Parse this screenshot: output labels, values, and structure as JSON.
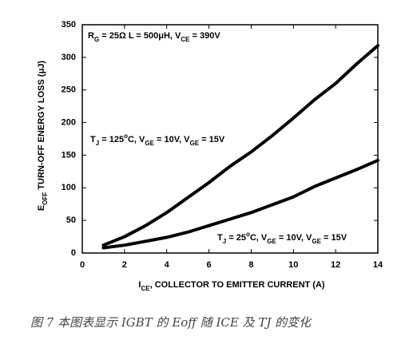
{
  "chart_data": {
    "type": "line",
    "annotations": [
      [
        {
          "text": "R"
        },
        {
          "text": "G",
          "sub": true
        },
        {
          "text": " = 25Ω L = 500μH, V"
        },
        {
          "text": "CE",
          "sub": true
        },
        {
          "text": " = 390V"
        }
      ]
    ],
    "x_label": [
      {
        "text": "I"
      },
      {
        "text": "CE",
        "sub": true
      },
      {
        "text": ", COLLECTOR TO EMITTER CURRENT (A)"
      }
    ],
    "y_label": [
      {
        "text": "E"
      },
      {
        "text": "OFF",
        "sub": true
      },
      {
        "text": " TURN-OFF ENERGY LOSS (μJ)"
      }
    ],
    "caption": "图 7 本图表显示 IGBT 的 Eoff 随 ICE 及 TJ 的变化",
    "x": [
      1,
      2,
      3,
      4,
      5,
      6,
      7,
      8,
      9,
      10,
      11,
      12,
      13,
      14
    ],
    "series": [
      {
        "name": [
          {
            "text": "T"
          },
          {
            "text": "J",
            "sub": true
          },
          {
            "text": " = 125"
          },
          {
            "text": "o",
            "sup": true
          },
          {
            "text": "C, V"
          },
          {
            "text": "GE",
            "sub": true
          },
          {
            "text": " = 10V, V"
          },
          {
            "text": "GE",
            "sub": true
          },
          {
            "text": " = 15V"
          }
        ],
        "color": "#000000",
        "values": [
          12,
          25,
          42,
          62,
          85,
          108,
          133,
          155,
          180,
          207,
          235,
          260,
          290,
          318
        ]
      },
      {
        "name": [
          {
            "text": "T"
          },
          {
            "text": "J",
            "sub": true
          },
          {
            "text": " = 25"
          },
          {
            "text": "o",
            "sup": true
          },
          {
            "text": "C, V"
          },
          {
            "text": "GE",
            "sub": true
          },
          {
            "text": " = 10V, V"
          },
          {
            "text": "GE",
            "sub": true
          },
          {
            "text": " = 15V"
          }
        ],
        "color": "#000000",
        "values": [
          8,
          12,
          18,
          24,
          32,
          42,
          52,
          62,
          74,
          86,
          102,
          115,
          128,
          142
        ]
      }
    ],
    "xlim": [
      0,
      14
    ],
    "xticks": [
      0,
      2,
      4,
      6,
      8,
      10,
      12,
      14
    ],
    "ylim": [
      0,
      350
    ],
    "yticks": [
      0,
      50,
      100,
      150,
      200,
      250,
      300,
      350
    ]
  }
}
